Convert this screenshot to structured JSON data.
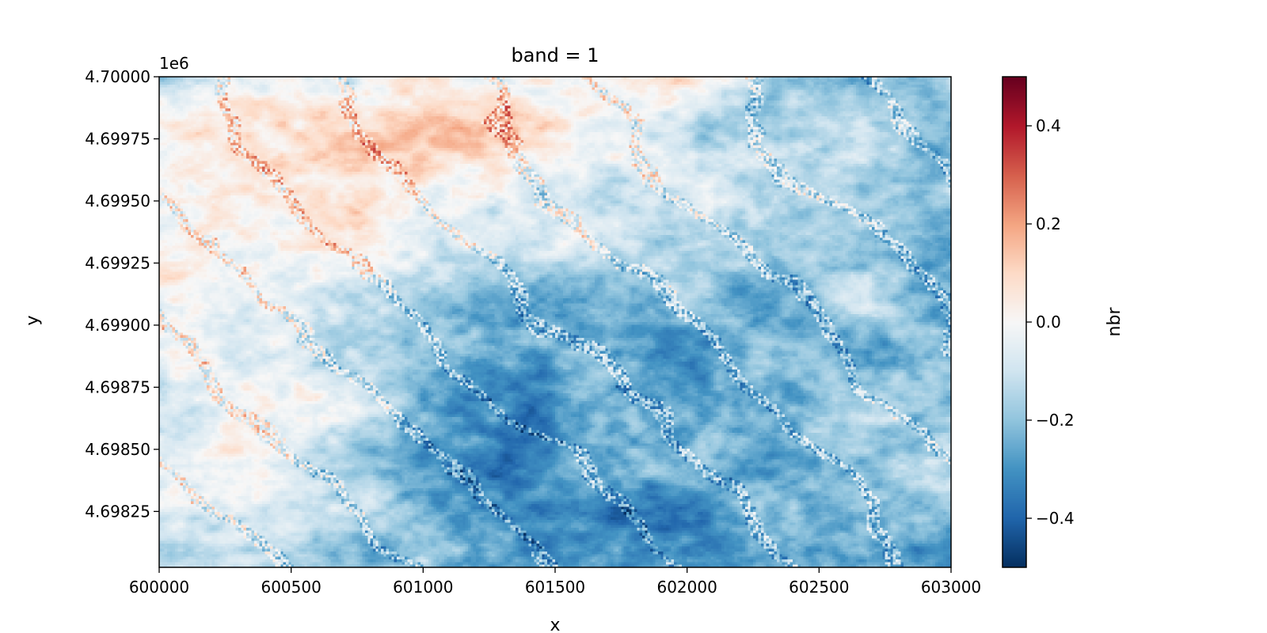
{
  "chart_data": {
    "type": "heatmap",
    "title": "band = 1",
    "xlabel": "x",
    "ylabel": "y",
    "y_offset_label": "1e6",
    "xlim": [
      600000,
      603000
    ],
    "ylim": [
      4698025,
      4700000
    ],
    "x_ticks": [
      600000,
      600500,
      601000,
      601500,
      602000,
      602500,
      603000
    ],
    "x_tick_labels": [
      "600000",
      "600500",
      "601000",
      "601500",
      "602000",
      "602500",
      "603000"
    ],
    "y_ticks": [
      4.69825,
      4.6985,
      4.69875,
      4.699,
      4.69925,
      4.6995,
      4.69975,
      4.7
    ],
    "y_tick_labels": [
      "4.69825",
      "4.69850",
      "4.69875",
      "4.69900",
      "4.69925",
      "4.69950",
      "4.69975",
      "4.70000"
    ],
    "colorbar": {
      "label": "nbr",
      "colormap": "RdBu_r",
      "range": [
        -0.5,
        0.5
      ],
      "ticks": [
        -0.4,
        -0.2,
        0.0,
        0.2,
        0.4
      ],
      "tick_labels": [
        "−0.4",
        "−0.2",
        "0.0",
        "0.2",
        "0.4"
      ]
    },
    "regions": [
      {
        "area": "upper-left",
        "approx_nbr": 0.15
      },
      {
        "area": "left-middle",
        "approx_nbr": 0.1
      },
      {
        "area": "top-center",
        "approx_nbr": 0.15
      },
      {
        "area": "center",
        "approx_nbr": -0.4
      },
      {
        "area": "lower-center",
        "approx_nbr": -0.4
      },
      {
        "area": "right",
        "approx_nbr": -0.2
      }
    ],
    "grid": false,
    "colors": {
      "neg_dark": "#053061",
      "neg_mid": "#4393c3",
      "neutral": "#f7f7f7",
      "pos_mid": "#f4a582",
      "pos_dark": "#67001f"
    }
  }
}
